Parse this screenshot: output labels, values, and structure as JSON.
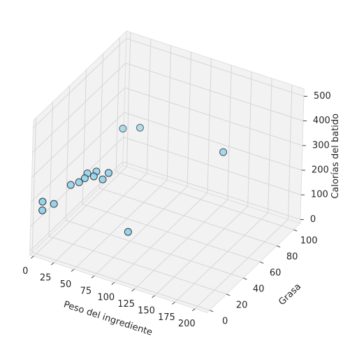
{
  "chart_data": {
    "type": "scatter3d",
    "xlabel": "Peso del ingrediente",
    "ylabel": "Grasa",
    "zlabel": "Calorías del batido",
    "x": [
      2,
      2,
      10,
      20,
      25,
      30,
      30,
      40,
      40,
      50,
      55,
      44,
      59,
      148,
      79
    ],
    "y": [
      4,
      4,
      10,
      20,
      25,
      27,
      30,
      28,
      31,
      29,
      31,
      58,
      64,
      78,
      33
    ],
    "z": [
      185,
      150,
      165,
      220,
      220,
      235,
      245,
      250,
      260,
      245,
      270,
      350,
      350,
      300,
      50
    ],
    "color": "#87ceeb",
    "edgecolor": "#1a1a1a",
    "xlim": [
      -5,
      215
    ],
    "ylim": [
      -3,
      108
    ],
    "zlim": [
      -15,
      530
    ],
    "xticks": [
      0,
      25,
      50,
      75,
      100,
      125,
      150,
      175,
      200
    ],
    "yticks": [
      0,
      20,
      40,
      60,
      80,
      100
    ],
    "zticks": [
      0,
      100,
      200,
      300,
      400,
      500
    ],
    "grid": true,
    "depthshade": true
  }
}
